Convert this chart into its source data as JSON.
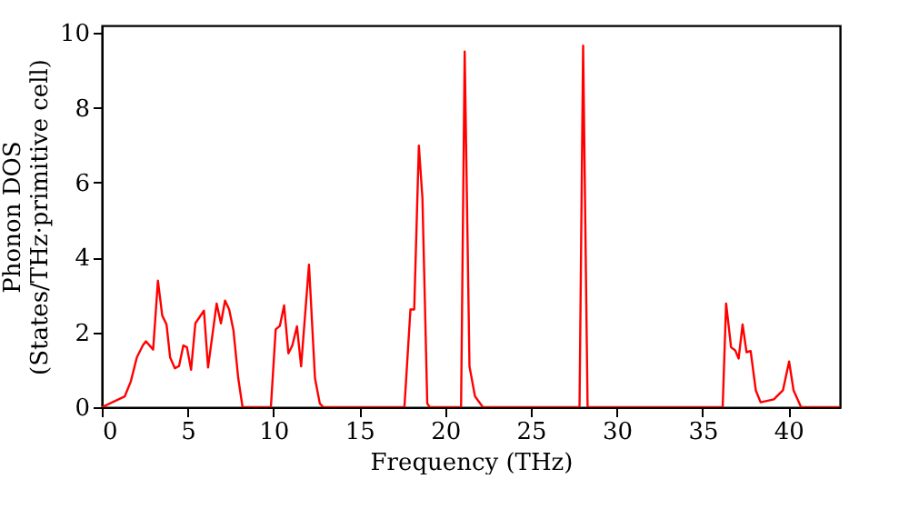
{
  "chart_data": {
    "type": "line",
    "xlabel": "Frequency (THz)",
    "ylabel": "Phonon DOS\n(States/THz·primitive cell)",
    "xlim": [
      0,
      43
    ],
    "ylim": [
      0,
      10.2
    ],
    "xticks": [
      0,
      5,
      10,
      15,
      20,
      25,
      30,
      35,
      40
    ],
    "yticks": [
      0,
      2,
      4,
      6,
      8,
      10
    ],
    "grid": false,
    "marker": "none",
    "line_style": "solid",
    "series": [
      {
        "color": "#ff0000",
        "x": [
          0,
          1.34,
          1.69,
          2.04,
          2.39,
          2.57,
          2.99,
          3.27,
          3.52,
          3.77,
          3.98,
          4.26,
          4.5,
          4.75,
          4.96,
          5.2,
          5.45,
          5.95,
          6.19,
          6.69,
          6.94,
          7.18,
          7.42,
          7.67,
          7.95,
          8.2,
          9.85,
          10.13,
          10.37,
          10.62,
          10.87,
          11.1,
          11.37,
          11.61,
          12.07,
          12.42,
          12.7,
          12.9,
          17.63,
          17.98,
          18.2,
          18.47,
          18.68,
          18.96,
          19.1,
          20.93,
          21.14,
          21.42,
          21.74,
          22.2,
          27.83,
          28.04,
          28.3,
          36.17,
          36.37,
          36.66,
          36.9,
          37.1,
          37.33,
          37.56,
          37.8,
          38.1,
          38.38,
          39.15,
          39.68,
          40.04,
          40.3,
          40.74,
          43
        ],
        "values": [
          0,
          0.29,
          0.69,
          1.33,
          1.65,
          1.76,
          1.54,
          3.38,
          2.45,
          2.21,
          1.33,
          1.04,
          1.1,
          1.65,
          1.6,
          1.0,
          2.24,
          2.58,
          1.06,
          2.77,
          2.24,
          2.85,
          2.61,
          2.05,
          0.77,
          0,
          0,
          2.08,
          2.17,
          2.72,
          1.44,
          1.65,
          2.16,
          1.09,
          3.81,
          0.77,
          0.1,
          0,
          0,
          2.61,
          2.61,
          6.99,
          5.58,
          0.1,
          0,
          0,
          9.5,
          1.09,
          0.29,
          0,
          0,
          9.66,
          0,
          0,
          2.77,
          1.6,
          1.52,
          1.3,
          2.21,
          1.47,
          1.5,
          0.45,
          0.13,
          0.21,
          0.45,
          1.22,
          0.45,
          0,
          0
        ]
      }
    ]
  }
}
